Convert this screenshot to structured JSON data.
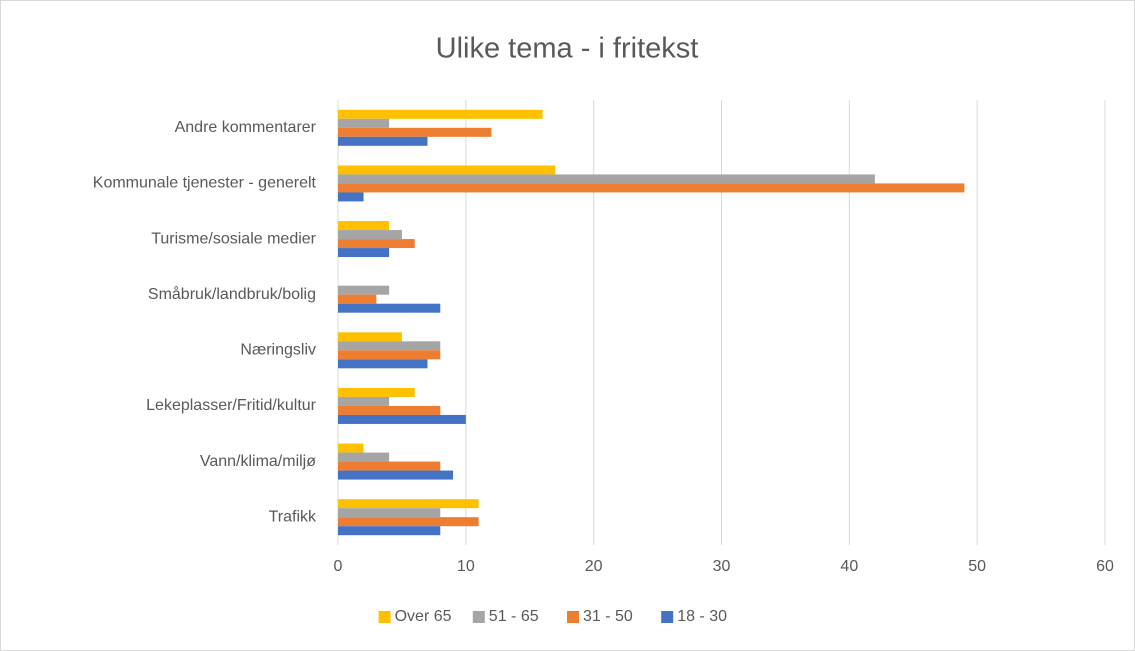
{
  "chart_data": {
    "type": "hbar",
    "title": "Ulike tema - i fritekst",
    "categories": [
      "Andre kommentarer",
      "Kommunale tjenester - generelt",
      "Turisme/sosiale medier",
      "Småbruk/landbruk/bolig",
      "Næringsliv",
      "Lekeplasser/Fritid/kultur",
      "Vann/klima/miljø",
      "Trafikk"
    ],
    "series": [
      {
        "name": "Over 65",
        "color": "#FFC000",
        "values": [
          16,
          17,
          4,
          0,
          5,
          6,
          2,
          11
        ]
      },
      {
        "name": "51 - 65",
        "color": "#A5A5A5",
        "values": [
          4,
          42,
          5,
          4,
          8,
          4,
          4,
          8
        ]
      },
      {
        "name": "31 - 50",
        "color": "#ED7D31",
        "values": [
          12,
          49,
          6,
          3,
          8,
          8,
          8,
          11
        ]
      },
      {
        "name": "18 - 30",
        "color": "#4472C4",
        "values": [
          7,
          2,
          4,
          8,
          7,
          10,
          9,
          8
        ]
      }
    ],
    "xlim": [
      0,
      60
    ],
    "xticks": [
      0,
      10,
      20,
      30,
      40,
      50,
      60
    ],
    "grid": true,
    "legend": "bottom"
  }
}
